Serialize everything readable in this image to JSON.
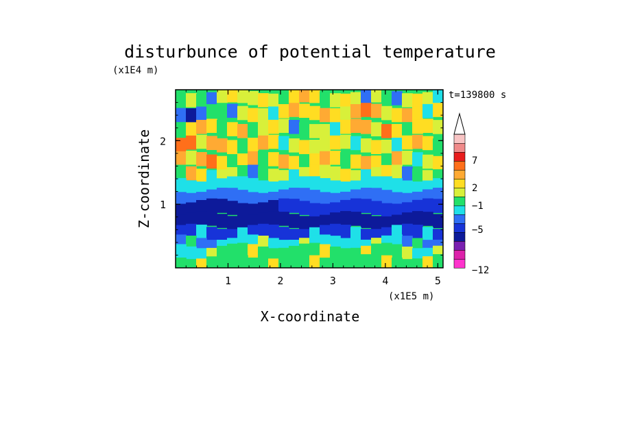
{
  "chart_data": {
    "type": "heatmap",
    "title": "disturbunce of potential temperature",
    "xlabel": "X-coordinate",
    "ylabel": "Z-coordinate",
    "x_unit": "(x1E5 m)",
    "y_unit": "(x1E4 m)",
    "time_label": "t=139800 s",
    "x_ticks": [
      "1",
      "2",
      "3",
      "4",
      "5"
    ],
    "y_ticks": [
      "1",
      "2"
    ],
    "xlim": [
      0,
      5.1
    ],
    "ylim": [
      0,
      2.8
    ],
    "grid": false,
    "legend": "colorbar-right",
    "colorbar_labels": [
      "7",
      "2",
      "−1",
      "−5",
      "−12"
    ],
    "colorbar_levels": [
      -12,
      -9,
      -7,
      -5,
      -3,
      -1,
      0,
      1,
      2,
      4,
      7,
      9,
      11
    ],
    "colorbar_colors": [
      "#ff33cc",
      "#dd22aa",
      "#7a20b0",
      "#0d1a9a",
      "#1733d8",
      "#2f6ff5",
      "#1fe0e8",
      "#22e06a",
      "#d8f03a",
      "#ffdd22",
      "#ffaa33",
      "#ff6f1a",
      "#e81c1c",
      "#f08a8a",
      "#f8c4c4"
    ],
    "field_rows": [
      {
        "z": 2.68,
        "band": [
          7,
          8,
          9,
          7,
          8
        ]
      },
      {
        "z": 2.45,
        "band": [
          4,
          8,
          9,
          10,
          8
        ]
      },
      {
        "z": 2.2,
        "band": [
          9,
          9,
          7,
          10,
          8
        ]
      },
      {
        "z": 1.95,
        "band": [
          10,
          9,
          8,
          8,
          9
        ]
      },
      {
        "z": 1.7,
        "band": [
          10,
          9,
          9,
          9,
          8
        ]
      },
      {
        "z": 1.48,
        "band": [
          9,
          7,
          8,
          8,
          7
        ]
      },
      {
        "z": 1.3,
        "band": [
          6,
          6,
          6,
          6,
          6
        ]
      },
      {
        "z": 1.12,
        "band": [
          5,
          5,
          5,
          5,
          5
        ]
      },
      {
        "z": 0.95,
        "band": [
          3,
          3,
          4,
          4,
          4
        ]
      },
      {
        "z": 0.75,
        "band": [
          3,
          3,
          3,
          3,
          3
        ]
      },
      {
        "z": 0.55,
        "band": [
          4,
          4,
          4,
          4,
          4
        ]
      },
      {
        "z": 0.38,
        "band": [
          5,
          6,
          6,
          6,
          5
        ]
      },
      {
        "z": 0.25,
        "band": [
          6,
          7,
          7,
          7,
          6
        ]
      },
      {
        "z": 0.08,
        "band": [
          7,
          7,
          7,
          7,
          7
        ]
      }
    ]
  }
}
